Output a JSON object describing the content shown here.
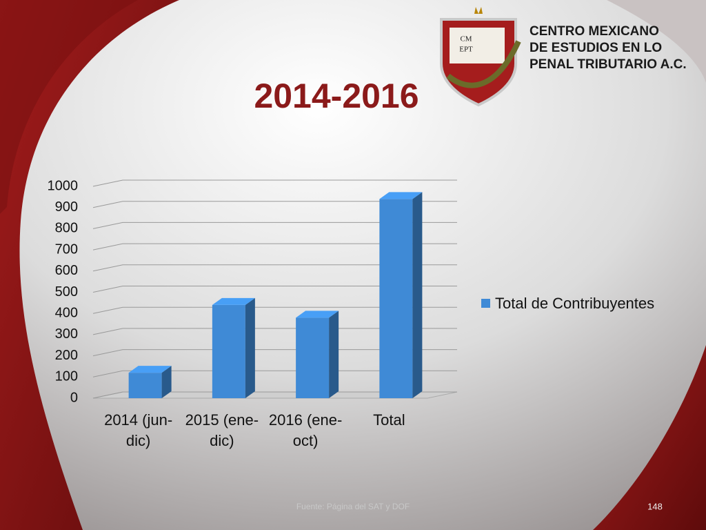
{
  "slide": {
    "logo": {
      "mark_top": "CM",
      "mark_bottom": "EPT",
      "lines": [
        "CENTRO MEXICANO",
        "DE ESTUDIOS EN LO",
        "PENAL TRIBUTARIO A.C."
      ]
    },
    "source": "Fuente: Página del SAT y DOF",
    "page": "148"
  },
  "chart_data": {
    "type": "bar",
    "title": "2014-2016",
    "categories": [
      "2014 (jun-dic)",
      "2015 (ene-dic)",
      "2016 (ene-oct)",
      "Total"
    ],
    "series": [
      {
        "name": "Total de Contribuyentes",
        "color": "#3f8ad6",
        "values": [
          120,
          440,
          380,
          940
        ]
      }
    ],
    "ylim": [
      0,
      1000
    ],
    "yticks": [
      0,
      100,
      200,
      300,
      400,
      500,
      600,
      700,
      800,
      900,
      1000
    ],
    "grid": true,
    "legend": "right"
  }
}
